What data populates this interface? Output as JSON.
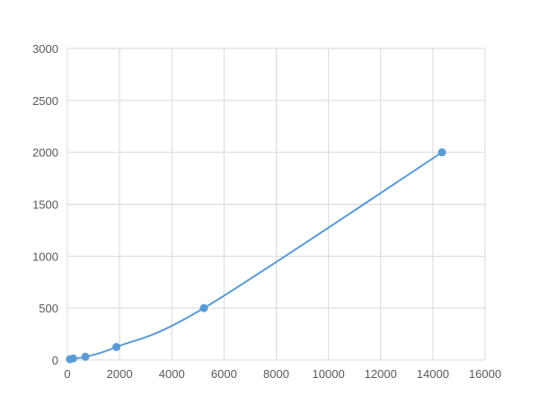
{
  "chart_data": {
    "type": "scatter",
    "title": "",
    "xlabel": "",
    "ylabel": "",
    "xlim": [
      0,
      16000
    ],
    "ylim": [
      0,
      3000
    ],
    "xticks": [
      0,
      2000,
      4000,
      6000,
      8000,
      10000,
      12000,
      14000,
      16000
    ],
    "yticks": [
      0,
      500,
      1000,
      1500,
      2000,
      2500,
      3000
    ],
    "grid": true,
    "smooth_line": true,
    "color": "#5b9bd5",
    "series": [
      {
        "x": [
          100,
          220,
          690,
          1880,
          5230,
          14350
        ],
        "y": [
          8,
          15,
          31,
          125,
          500,
          2000
        ]
      }
    ]
  }
}
